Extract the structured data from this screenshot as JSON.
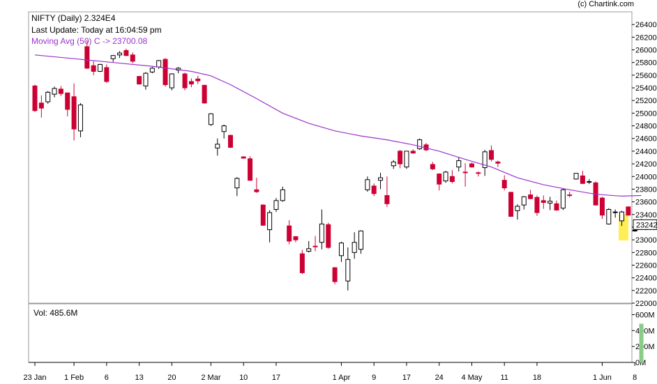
{
  "header": {
    "credit": "(c) Chartink.com",
    "title": "NIFTY (Daily) 2.324E4",
    "last_update": "Last Update: Today at 16:04:59 pm",
    "moving_avg": "Moving Avg (50) C -> 23700.08"
  },
  "volume_panel": {
    "label": "Vol: 485.6M"
  },
  "colors": {
    "bull": "#ffffff",
    "bear": "#cc0033",
    "moving_avg": "#9933cc",
    "volume_bar": "#88cc88",
    "highlight": "#ffee55"
  },
  "chart_data": {
    "type": "candlestick",
    "title": "NIFTY (Daily)",
    "price_axis": {
      "ylim": [
        22000,
        26600
      ],
      "ticks": [
        22000,
        22200,
        22400,
        22600,
        22800,
        23000,
        23200,
        23400,
        23600,
        23800,
        24000,
        24200,
        24400,
        24600,
        24800,
        25000,
        25200,
        25400,
        25600,
        25800,
        26000,
        26200,
        26400
      ],
      "last_price_label": "23242"
    },
    "volume_axis": {
      "ylim": [
        0,
        700
      ],
      "ticks": [
        {
          "value": 0,
          "label": "0M"
        },
        {
          "value": 200,
          "label": "200M"
        },
        {
          "value": 400,
          "label": "400M"
        },
        {
          "value": 600,
          "label": "600M"
        }
      ]
    },
    "x_ticks": [
      {
        "label": "23 Jan",
        "index": 0
      },
      {
        "label": "1 Feb",
        "index": 6
      },
      {
        "label": "6",
        "index": 11
      },
      {
        "label": "13",
        "index": 16
      },
      {
        "label": "20",
        "index": 21
      },
      {
        "label": "2 Mar",
        "index": 27
      },
      {
        "label": "10",
        "index": 32
      },
      {
        "label": "17",
        "index": 37
      },
      {
        "label": "1 Apr",
        "index": 47
      },
      {
        "label": "9",
        "index": 52
      },
      {
        "label": "17",
        "index": 57
      },
      {
        "label": "24",
        "index": 62
      },
      {
        "label": "4 May",
        "index": 67
      },
      {
        "label": "11",
        "index": 72
      },
      {
        "label": "18",
        "index": 77
      },
      {
        "label": "1 Jun",
        "index": 87
      },
      {
        "label": "8",
        "index": 92
      }
    ],
    "grid": true,
    "candles": [
      [
        25430,
        25450,
        25020,
        25040
      ],
      [
        25160,
        25280,
        24930,
        25080
      ],
      [
        25180,
        25350,
        25150,
        25330
      ],
      [
        25300,
        25420,
        25250,
        25390
      ],
      [
        25380,
        25430,
        25270,
        25310
      ],
      [
        25320,
        25320,
        24950,
        25060
      ],
      [
        25260,
        25470,
        24570,
        24750
      ],
      [
        24720,
        25160,
        24620,
        25130
      ],
      [
        26050,
        26150,
        25700,
        25710
      ],
      [
        25750,
        25820,
        25600,
        25660
      ],
      [
        25660,
        25780,
        25650,
        25770
      ],
      [
        25720,
        25770,
        25480,
        25500
      ],
      [
        25860,
        25920,
        25810,
        25910
      ],
      [
        25920,
        25980,
        25870,
        25950
      ],
      [
        25990,
        26020,
        25900,
        25910
      ],
      [
        25920,
        25960,
        25790,
        25820
      ],
      [
        25580,
        25590,
        25450,
        25460
      ],
      [
        25430,
        25650,
        25370,
        25630
      ],
      [
        25650,
        25730,
        25630,
        25710
      ],
      [
        25730,
        25840,
        25700,
        25830
      ],
      [
        25850,
        25870,
        25420,
        25450
      ],
      [
        25400,
        25630,
        25360,
        25620
      ],
      [
        25680,
        25730,
        25630,
        25710
      ],
      [
        25620,
        25640,
        25360,
        25400
      ],
      [
        25500,
        25550,
        25410,
        25460
      ],
      [
        25540,
        25590,
        25460,
        25510
      ],
      [
        25440,
        25450,
        25150,
        25160
      ],
      [
        24820,
        25000,
        24800,
        24990
      ],
      [
        24450,
        24600,
        24330,
        24510
      ],
      [
        24710,
        24820,
        24600,
        24800
      ],
      [
        24650,
        24660,
        24450,
        24460
      ],
      [
        23820,
        23990,
        23690,
        23970
      ],
      [
        24310,
        24320,
        24280,
        24290
      ],
      [
        24280,
        24320,
        23930,
        23940
      ],
      [
        23790,
        23980,
        23740,
        23760
      ],
      [
        23550,
        23560,
        23220,
        23230
      ],
      [
        23160,
        23470,
        22960,
        23430
      ],
      [
        23480,
        23660,
        23440,
        23620
      ],
      [
        23620,
        23840,
        23600,
        23790
      ],
      [
        23220,
        23310,
        22930,
        22980
      ],
      [
        23050,
        23060,
        22960,
        23000
      ],
      [
        22780,
        22840,
        22460,
        22480
      ],
      [
        22820,
        22980,
        22800,
        22860
      ],
      [
        22900,
        23060,
        22820,
        22890
      ],
      [
        22960,
        23480,
        22850,
        23250
      ],
      [
        23240,
        23270,
        22860,
        22880
      ],
      [
        22560,
        22570,
        22300,
        22340
      ],
      [
        22750,
        22970,
        22650,
        22950
      ],
      [
        22350,
        22880,
        22200,
        22690
      ],
      [
        22800,
        23120,
        22700,
        22960
      ],
      [
        22850,
        23150,
        22780,
        23140
      ],
      [
        23790,
        24000,
        23760,
        23950
      ],
      [
        23850,
        23890,
        23690,
        23730
      ],
      [
        23940,
        24060,
        23800,
        23980
      ],
      [
        23700,
        24000,
        23520,
        23570
      ],
      [
        24170,
        24260,
        24120,
        24230
      ],
      [
        24400,
        24420,
        24130,
        24200
      ],
      [
        24150,
        24400,
        24120,
        24400
      ],
      [
        24400,
        24430,
        24360,
        24370
      ],
      [
        24440,
        24600,
        24420,
        24580
      ],
      [
        24500,
        24530,
        24400,
        24420
      ],
      [
        24190,
        24230,
        24100,
        24120
      ],
      [
        24040,
        24050,
        23780,
        23880
      ],
      [
        23930,
        24090,
        23900,
        24070
      ],
      [
        24000,
        24100,
        23890,
        23920
      ],
      [
        24150,
        24300,
        24080,
        24250
      ],
      [
        24070,
        24210,
        23840,
        24060
      ],
      [
        24200,
        24220,
        24140,
        24150
      ],
      [
        24060,
        24080,
        24000,
        24050
      ],
      [
        24140,
        24420,
        24010,
        24390
      ],
      [
        24410,
        24490,
        24240,
        24270
      ],
      [
        24230,
        24250,
        24150,
        24210
      ],
      [
        23940,
        24020,
        23780,
        23820
      ],
      [
        23750,
        23760,
        23370,
        23370
      ],
      [
        23460,
        23560,
        23320,
        23530
      ],
      [
        23550,
        23690,
        23480,
        23680
      ],
      [
        23710,
        23790,
        23640,
        23650
      ],
      [
        23670,
        23700,
        23380,
        23430
      ],
      [
        23620,
        23700,
        23490,
        23590
      ],
      [
        23580,
        23680,
        23470,
        23610
      ],
      [
        23570,
        23620,
        23460,
        23470
      ],
      [
        23500,
        23810,
        23470,
        23790
      ],
      [
        23710,
        23760,
        23670,
        23700
      ],
      [
        23960,
        24050,
        23950,
        24050
      ],
      [
        24010,
        24090,
        23880,
        23890
      ],
      [
        23910,
        23960,
        23880,
        23920
      ],
      [
        23900,
        23920,
        23540,
        23550
      ],
      [
        23660,
        23680,
        23330,
        23390
      ],
      [
        23250,
        23500,
        23240,
        23480
      ],
      [
        23440,
        23480,
        23350,
        23440
      ],
      [
        23300,
        23460,
        23220,
        23440
      ],
      [
        23520,
        23530,
        23380,
        23390
      ],
      [
        23140,
        23170,
        23130,
        23150
      ],
      [
        23190,
        23330,
        23160,
        23240
      ]
    ],
    "moving_average": {
      "name": "Moving Avg (50) C",
      "points": [
        [
          0,
          25920
        ],
        [
          6,
          25860
        ],
        [
          12,
          25800
        ],
        [
          18,
          25740
        ],
        [
          24,
          25660
        ],
        [
          27,
          25590
        ],
        [
          30,
          25450
        ],
        [
          34,
          25230
        ],
        [
          38,
          25000
        ],
        [
          42,
          24840
        ],
        [
          46,
          24720
        ],
        [
          50,
          24640
        ],
        [
          54,
          24580
        ],
        [
          58,
          24500
        ],
        [
          62,
          24400
        ],
        [
          66,
          24270
        ],
        [
          70,
          24150
        ],
        [
          74,
          23980
        ],
        [
          78,
          23870
        ],
        [
          82,
          23790
        ],
        [
          86,
          23720
        ],
        [
          90,
          23690
        ],
        [
          93,
          23700
        ]
      ]
    },
    "volume": [
      {
        "index": 93,
        "value": 485.6
      }
    ]
  }
}
